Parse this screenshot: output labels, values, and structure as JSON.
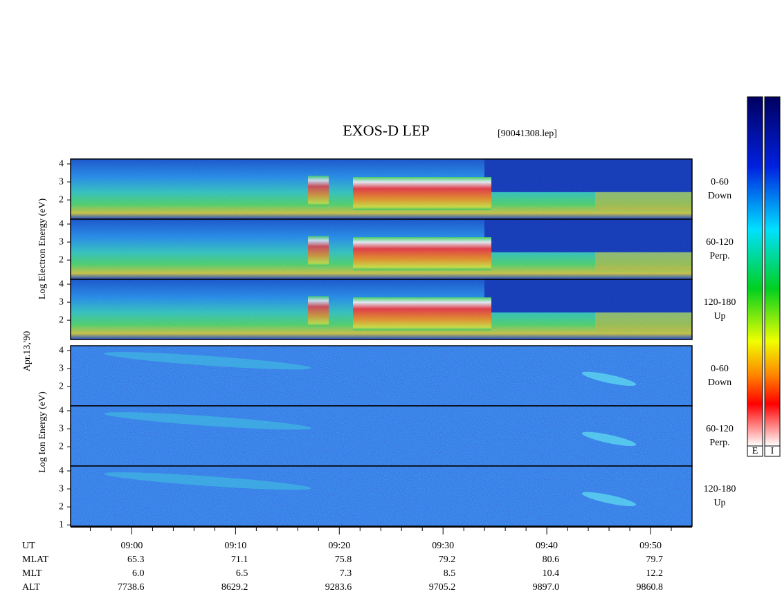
{
  "chart_data": {
    "type": "spectrogram",
    "title": "EXOS-D LEP",
    "file": "[90041308.lep]",
    "date": "Apr.13,'90",
    "electron_label": "Log Electron Energy (eV)",
    "ion_label": "Log Ion Energy (eV)",
    "xlim": [
      534.1,
      594
    ],
    "xticks": [
      {
        "value": 540,
        "label": "09:00"
      },
      {
        "value": 550,
        "label": "09:10"
      },
      {
        "value": 560,
        "label": "09:20"
      },
      {
        "value": 570,
        "label": "09:30"
      },
      {
        "value": 580,
        "label": "09:40"
      },
      {
        "value": 590,
        "label": "09:50"
      }
    ],
    "xminorticks": [
      536,
      538,
      542,
      544,
      546,
      548,
      552,
      554,
      556,
      558,
      562,
      564,
      566,
      568,
      572,
      574,
      576,
      578,
      582,
      584,
      586,
      588,
      592
    ],
    "panels": [
      {
        "species": "electron",
        "angle": "0-60",
        "direction": "Down",
        "ylim": [
          0.93,
          4.27
        ],
        "yticks": [
          2,
          3,
          4
        ]
      },
      {
        "species": "electron",
        "angle": "60-120",
        "direction": "Perp.",
        "ylim": [
          0.93,
          4.27
        ],
        "yticks": [
          2,
          3,
          4
        ]
      },
      {
        "species": "electron",
        "angle": "120-180",
        "direction": "Up",
        "ylim": [
          0.93,
          4.27
        ],
        "yticks": [
          2,
          3,
          4
        ]
      },
      {
        "species": "ion",
        "angle": "0-60",
        "direction": "Down",
        "ylim": [
          0.93,
          4.27
        ],
        "yticks": [
          2,
          3,
          4
        ]
      },
      {
        "species": "ion",
        "angle": "60-120",
        "direction": "Perp.",
        "ylim": [
          0.93,
          4.27
        ],
        "yticks": [
          2,
          3,
          4
        ]
      },
      {
        "species": "ion",
        "angle": "120-180",
        "direction": "Up",
        "ylim": [
          0.93,
          4.27
        ],
        "yticks": [
          1,
          2,
          3,
          4
        ]
      }
    ],
    "orbit": {
      "time_label": "UT",
      "rows": [
        {
          "name": "MLAT",
          "values": [
            "65.3",
            "71.1",
            "75.8",
            "79.2",
            "80.6",
            "79.7"
          ]
        },
        {
          "name": "MLT",
          "values": [
            "6.0",
            "6.5",
            "7.3",
            "8.5",
            "10.4",
            "12.2"
          ]
        },
        {
          "name": "ALT",
          "values": [
            "7738.6",
            "8629.2",
            "9283.6",
            "9705.2",
            "9897.0",
            "9860.8"
          ]
        }
      ]
    },
    "colorbar_labels": [
      "E",
      "I"
    ]
  }
}
